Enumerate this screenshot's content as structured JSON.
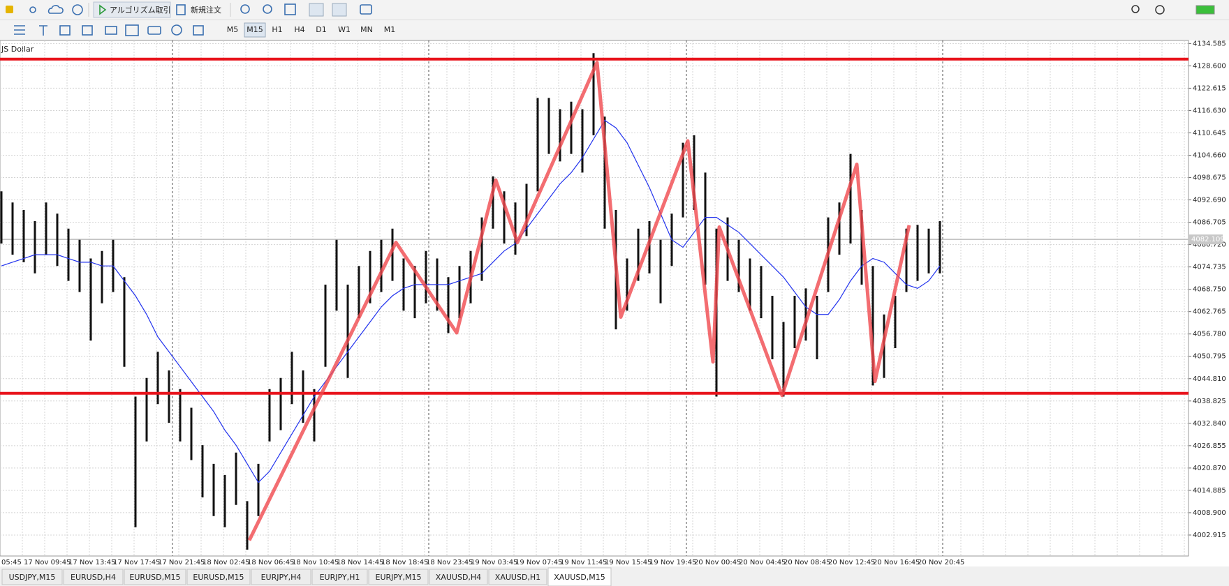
{
  "toolbar": {
    "algo_trading": "アルゴリズム取引",
    "new_order": "新規注文",
    "timeframes": [
      "M5",
      "M15",
      "H1",
      "H4",
      "D1",
      "W1",
      "MN",
      "M1"
    ],
    "active_timeframe": 1
  },
  "chart_data": {
    "type": "candlestick",
    "title": "JS Dollar",
    "time_labels": [
      "05:45",
      "17 Nov 09:45",
      "17 Nov 13:45",
      "17 Nov 17:45",
      "17 Nov 21:45",
      "18 Nov 02:45",
      "18 Nov 06:45",
      "18 Nov 10:45",
      "18 Nov 14:45",
      "18 Nov 18:45",
      "18 Nov 23:45",
      "19 Nov 03:45",
      "19 Nov 07:45",
      "19 Nov 11:45",
      "19 Nov 15:45",
      "19 Nov 19:45",
      "20 Nov 00:45",
      "20 Nov 04:45",
      "20 Nov 08:45",
      "20 Nov 12:45",
      "20 Nov 16:45",
      "20 Nov 20:45"
    ],
    "highs": [
      4095,
      4092,
      4090,
      4087,
      4092,
      4089,
      4085,
      4082,
      4077,
      4079,
      4082,
      4072,
      4040,
      4045,
      4052,
      4047,
      4042,
      4037,
      4027,
      4022,
      4019,
      4025,
      4012,
      4022,
      4042,
      4045,
      4052,
      4047,
      4042,
      4070,
      4082,
      4070,
      4075,
      4079,
      4082,
      4085,
      4077,
      4075,
      4079,
      4077,
      4072,
      4075,
      4079,
      4088,
      4099,
      4095,
      4092,
      4097,
      4120,
      4120,
      4117,
      4119,
      4117,
      4132,
      4115,
      4090,
      4077,
      4085,
      4087,
      4082,
      4089,
      4108,
      4110,
      4100,
      4085,
      4088,
      4082,
      4077,
      4075,
      4067,
      4060,
      4067,
      4069,
      4067,
      4088,
      4092,
      4105,
      4090,
      4075,
      4062,
      4067,
      4085,
      4086,
      4085,
      4087
    ],
    "lows": [
      4081,
      4078,
      4076,
      4073,
      4078,
      4075,
      4071,
      4068,
      4055,
      4065,
      4068,
      4048,
      4005,
      4028,
      4038,
      4033,
      4028,
      4023,
      4013,
      4008,
      4005,
      4011,
      3999,
      4008,
      4028,
      4031,
      4038,
      4033,
      4028,
      4048,
      4063,
      4045,
      4061,
      4065,
      4068,
      4071,
      4063,
      4061,
      4065,
      4063,
      4057,
      4061,
      4065,
      4071,
      4085,
      4081,
      4078,
      4083,
      4095,
      4105,
      4103,
      4105,
      4100,
      4110,
      4085,
      4058,
      4063,
      4071,
      4073,
      4065,
      4075,
      4088,
      4090,
      4070,
      4040,
      4071,
      4068,
      4063,
      4061,
      4050,
      4040,
      4053,
      4055,
      4050,
      4068,
      4078,
      4081,
      4070,
      4043,
      4045,
      4053,
      4068,
      4071,
      4073,
      4073
    ],
    "ma": {
      "color": "#2233ee",
      "values": [
        4075,
        4076,
        4077,
        4078,
        4078,
        4078,
        4077,
        4076,
        4076,
        4075,
        4075,
        4071,
        4067,
        4062,
        4056,
        4052,
        4048,
        4044,
        4040,
        4036,
        4031,
        4027,
        4022,
        4017,
        4020,
        4025,
        4030,
        4035,
        4040,
        4044,
        4048,
        4052,
        4056,
        4060,
        4064,
        4067,
        4069,
        4070,
        4070,
        4070,
        4070,
        4071,
        4072,
        4073,
        4076,
        4079,
        4081,
        4085,
        4089,
        4093,
        4097,
        4100,
        4104,
        4109,
        4114,
        4112,
        4108,
        4102,
        4096,
        4089,
        4082,
        4080,
        4084,
        4088,
        4088,
        4086,
        4084,
        4081,
        4078,
        4075,
        4072,
        4068,
        4064,
        4062,
        4062,
        4066,
        4071,
        4075,
        4077,
        4076,
        4073,
        4070,
        4069,
        4071,
        4075
      ]
    },
    "levels": {
      "color": "#e8141c",
      "values": [
        4130.4,
        4040.9
      ]
    },
    "zigzag": {
      "color": "#f0484e",
      "values": [
        4001.5,
        4081.3,
        4057.1,
        4098.0,
        4081.3,
        4129.5,
        4061.3,
        4108.5,
        4049.3,
        4085.4,
        4040.3,
        4102.2,
        4044.1,
        4085.9
      ]
    },
    "current_price": 4082.109,
    "candle_color": "#111111",
    "ylim": [
      3997.3,
      4135.4
    ],
    "yticks": [
      4134.585,
      {
        "value": 4128.6,
        "label": "4128.600"
      },
      4122.615,
      {
        "value": 4116.63,
        "label": "4116.630"
      },
      4110.645,
      {
        "value": 4104.66,
        "label": "4104.660"
      },
      4098.675,
      {
        "value": 4092.69,
        "label": "4092.690"
      },
      4086.705,
      {
        "value": 4080.72,
        "label": "4080.720"
      },
      4074.735,
      {
        "value": 4068.75,
        "label": "4068.750"
      },
      4062.765,
      {
        "value": 4056.78,
        "label": "4056.780"
      },
      4050.795,
      {
        "value": 4044.81,
        "label": "4044.810"
      },
      4038.825,
      {
        "value": 4032.84,
        "label": "4032.840"
      },
      4026.855,
      {
        "value": 4020.87,
        "label": "4020.870"
      },
      4014.885,
      {
        "value": 4008.9,
        "label": "4008.900"
      },
      4002.915
    ],
    "grid": true
  },
  "tabs": [
    "USDJPY,M15",
    "EURUSD,H4",
    "EURUSD,M15",
    "EURUSD,M15",
    "EURJPY,H4",
    "EURJPY,H1",
    "EURJPY,M15",
    "XAUUSD,H4",
    "XAUUSD,H1",
    "XAUUSD,M15"
  ],
  "active_tab": 9
}
